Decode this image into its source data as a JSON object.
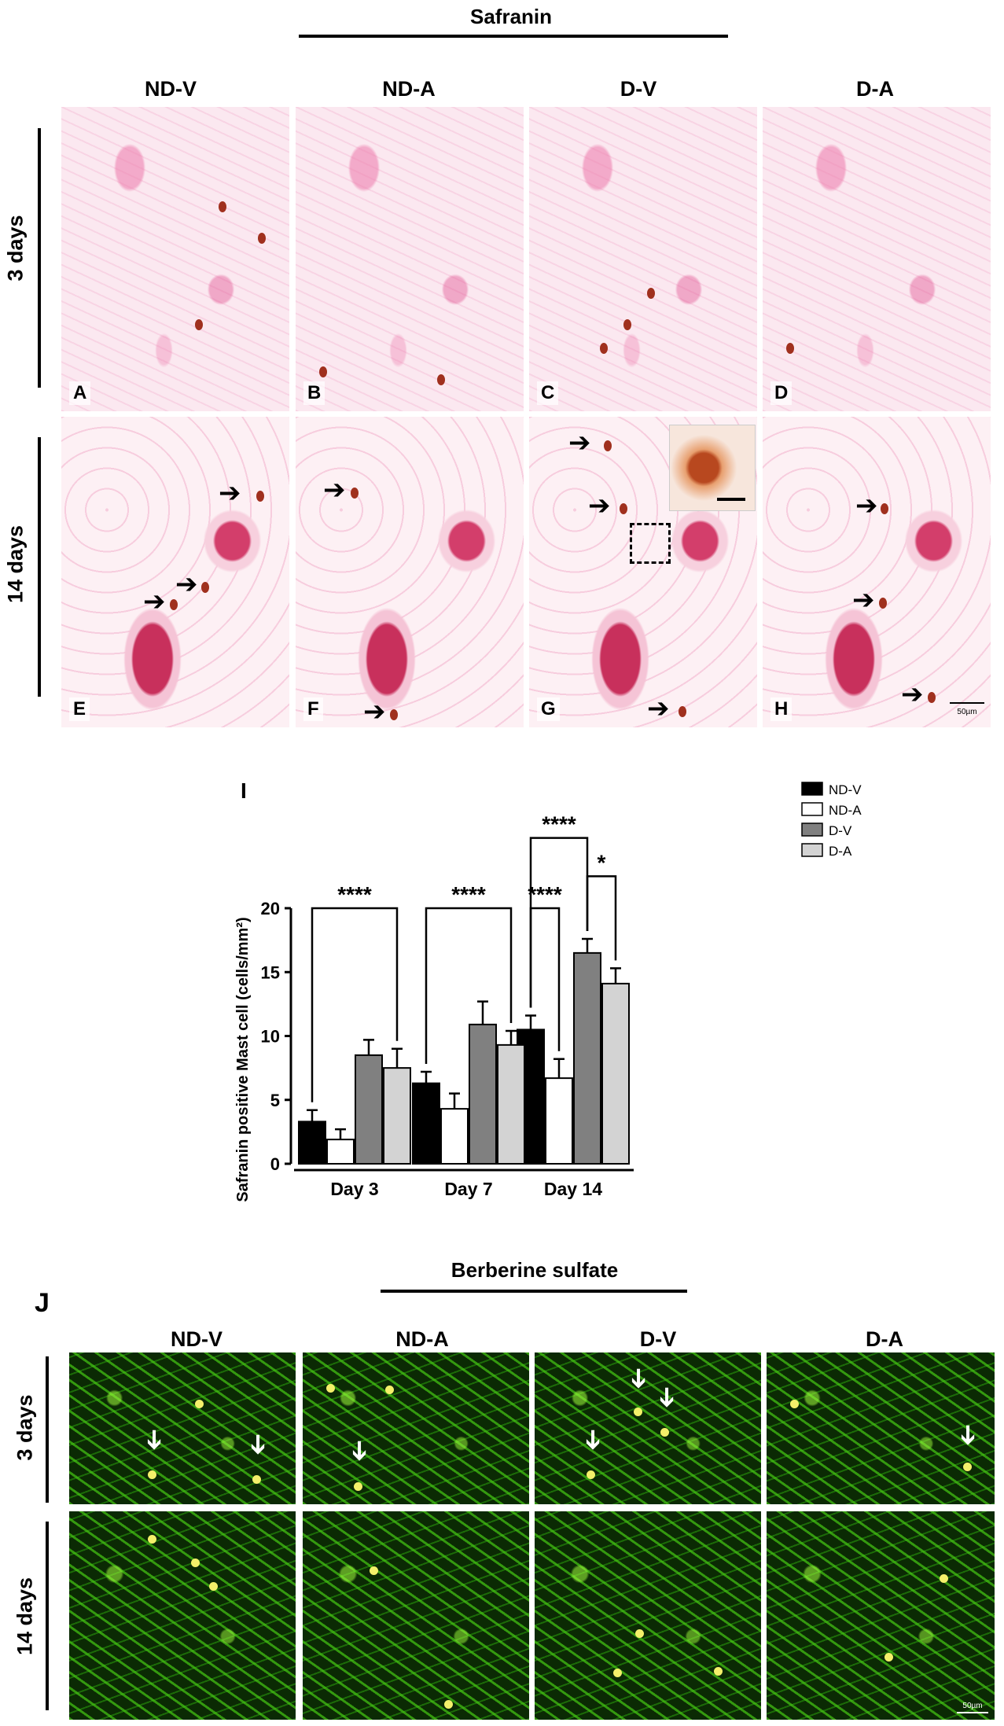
{
  "figure": {
    "safranin_title": "Safranin",
    "berberine_title": "Berberine sulfate",
    "groups": [
      "ND-V",
      "ND-A",
      "D-V",
      "D-A"
    ],
    "rows": [
      "3 days",
      "14 days"
    ],
    "safranin_panel_letters": [
      "A",
      "B",
      "C",
      "D",
      "E",
      "F",
      "G",
      "H"
    ],
    "chart_panel_letter": "I",
    "berberine_panel_letter": "J",
    "scale_bar_label": "50µm"
  },
  "chart_data": {
    "type": "bar",
    "categories": [
      "Day 3",
      "Day 7",
      "Day 14"
    ],
    "ylabel": "Safranin positive Mast cell (cells/mm²)",
    "ylim": [
      0,
      20
    ],
    "yticks": [
      0,
      5,
      10,
      15,
      20
    ],
    "legend_position": "top-right",
    "series": [
      {
        "name": "ND-V",
        "color": "#000000",
        "values": [
          3.3,
          6.3,
          10.5
        ],
        "errors": [
          0.9,
          0.9,
          1.1
        ]
      },
      {
        "name": "ND-A",
        "color": "#ffffff",
        "values": [
          1.9,
          4.3,
          6.7
        ],
        "errors": [
          0.8,
          1.2,
          1.5
        ]
      },
      {
        "name": "D-V",
        "color": "#808080",
        "values": [
          8.5,
          10.9,
          16.5
        ],
        "errors": [
          1.2,
          1.8,
          1.1
        ]
      },
      {
        "name": "D-A",
        "color": "#d3d3d3",
        "values": [
          7.5,
          9.3,
          14.1
        ],
        "errors": [
          1.5,
          1.1,
          1.2
        ]
      }
    ],
    "annotations": [
      {
        "label": "****",
        "category": "Day 3",
        "from_series": "ND-V",
        "to_series": "D-A"
      },
      {
        "label": "****",
        "category": "Day 7",
        "from_series": "ND-V",
        "to_series": "D-A"
      },
      {
        "label": "****",
        "category": "Day 14",
        "from_series": "ND-V",
        "to_series": "ND-A"
      },
      {
        "label": "****",
        "category": "Day 14",
        "from_series": "ND-V",
        "to_series": "D-V"
      },
      {
        "label": "*",
        "category": "Day 14",
        "from_series": "D-V",
        "to_series": "D-A"
      }
    ]
  }
}
